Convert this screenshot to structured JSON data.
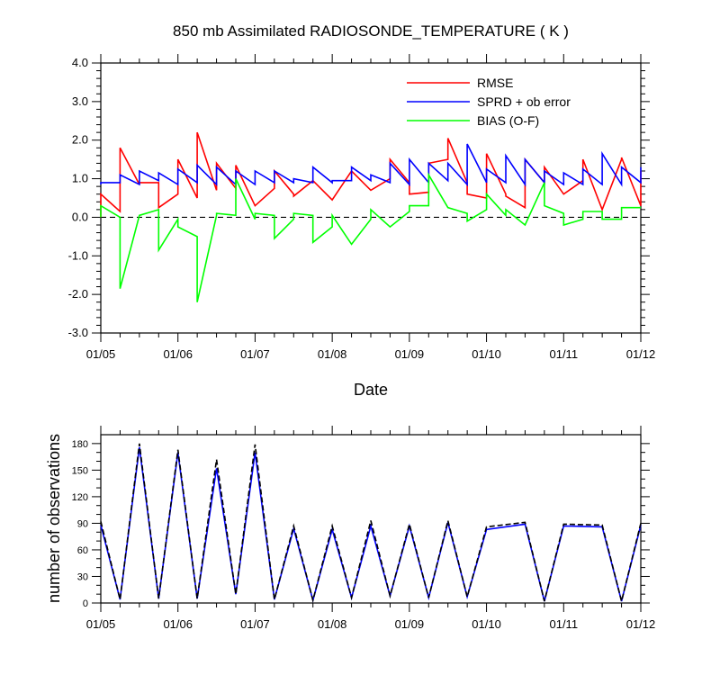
{
  "title": "850 mb Assimilated RADIOSONDE_TEMPERATURE ( K )",
  "colors": {
    "rmse": "#ff0000",
    "sprd": "#0000ff",
    "bias": "#00ff00",
    "axis": "#000000"
  },
  "chart_data": [
    {
      "type": "line",
      "title": "850 mb Assimilated RADIOSONDE_TEMPERATURE ( K )",
      "xlabel": "Date",
      "ylabel": "",
      "ylim": [
        -3,
        4
      ],
      "yticks": [
        "-3.0",
        "-2.0",
        "-1.0",
        "0.0",
        "1.0",
        "2.0",
        "3.0",
        "4.0"
      ],
      "xlim": [
        0,
        7
      ],
      "xticks": [
        "01/05",
        "01/06",
        "01/07",
        "01/08",
        "01/09",
        "01/10",
        "01/11",
        "01/12"
      ],
      "x": [
        0,
        0.25,
        0.5,
        0.75,
        1,
        1.25,
        1.5,
        1.75,
        2,
        2.25,
        2.5,
        2.75,
        3,
        3.25,
        3.5,
        3.75,
        4,
        4.25,
        4.5,
        4.75,
        5,
        5.25,
        5.5,
        5.75,
        6,
        6.25,
        6.5,
        6.75,
        7
      ],
      "legend": "top-right",
      "zero_line": "dashed",
      "series": [
        {
          "name": "RMSE",
          "color": "#ff0000",
          "values": [
            0.6,
            1.8,
            0.9,
            0.25,
            1.5,
            2.2,
            1.4,
            1.35,
            0.3,
            1.2,
            0.55,
            0.95,
            0.45,
            1.2,
            0.7,
            1.5,
            0.6,
            1.4,
            2.05,
            0.6,
            1.65,
            0.55,
            1.5,
            1.3,
            0.6,
            1.5,
            0.2,
            1.55,
            1.2
          ],
          "drops": [
            0,
            0.15,
            0.85,
            0.9,
            0.6,
            0.5,
            0.7,
            0.75,
            0.3,
            0.75,
            0.6,
            0.95,
            0.45,
            1.2,
            0.7,
            1.0,
            0.9,
            0.65,
            1.5,
            0.9,
            0.5,
            0.6,
            0.25,
            0.9,
            0.6,
            0.95,
            0.2,
            1.5,
            0.3
          ]
        },
        {
          "name": "SPRD + ob error",
          "color": "#0000ff",
          "values": [
            0.9,
            1.1,
            1.2,
            1.15,
            1.25,
            1.35,
            1.3,
            1.2,
            1.2,
            1.2,
            1.0,
            1.3,
            0.95,
            1.3,
            1.1,
            1.4,
            1.5,
            1.4,
            1.4,
            1.9,
            1.25,
            1.6,
            1.5,
            1.2,
            1.15,
            1.25,
            1.65,
            1.3,
            1.3
          ],
          "drops": [
            0.85,
            0.9,
            0.85,
            0.95,
            0.85,
            0.9,
            0.85,
            0.85,
            0.85,
            0.9,
            0.9,
            0.9,
            0.9,
            0.95,
            0.95,
            0.9,
            0.85,
            0.9,
            0.95,
            0.85,
            0.9,
            0.9,
            0.85,
            0.9,
            0.85,
            0.85,
            0.85,
            0.85,
            0.9
          ]
        },
        {
          "name": "BIAS (O-F)",
          "color": "#00ff00",
          "values": [
            0.3,
            -1.85,
            0.05,
            -0.85,
            -0.25,
            -2.2,
            0.1,
            1.0,
            0.1,
            -0.55,
            0.1,
            -0.65,
            0.05,
            -0.7,
            0.2,
            -0.25,
            0.3,
            1.1,
            0.25,
            -0.1,
            0.6,
            0.2,
            -0.2,
            0.3,
            -0.2,
            0.15,
            -0.05,
            0.25,
            0.25
          ],
          "drops": [
            0,
            0.0,
            0.05,
            0.2,
            -0.05,
            -0.5,
            0.05,
            0.05,
            -0.05,
            0.05,
            -0.05,
            0.05,
            -0.25,
            -0.7,
            -0.05,
            -0.25,
            0.15,
            0.3,
            0.25,
            0.1,
            0.2,
            0.05,
            -0.2,
            0.9,
            0.1,
            -0.05,
            0.15,
            -0.05,
            0.25
          ]
        }
      ]
    },
    {
      "type": "line",
      "ylabel": "number of observations",
      "ylim": [
        0,
        190
      ],
      "yticks": [
        "0",
        "30",
        "60",
        "90",
        "120",
        "150",
        "180"
      ],
      "xlim": [
        0,
        7
      ],
      "xticks": [
        "01/05",
        "01/06",
        "01/07",
        "01/08",
        "01/09",
        "01/10",
        "01/11",
        "01/12"
      ],
      "x": [
        0,
        0.25,
        0.5,
        0.75,
        1,
        1.25,
        1.5,
        1.75,
        2,
        2.25,
        2.5,
        2.75,
        3,
        3.25,
        3.5,
        3.75,
        4,
        4.25,
        4.5,
        4.75,
        5,
        5.5,
        5.75,
        6,
        6.5,
        6.75,
        7
      ],
      "series": [
        {
          "name": "",
          "color": "#0000ff",
          "style": "solid",
          "values": [
            88,
            4,
            176,
            5,
            170,
            5,
            152,
            10,
            170,
            4,
            84,
            3,
            83,
            6,
            87,
            8,
            87,
            6,
            91,
            7,
            83,
            89,
            2,
            87,
            86,
            2,
            88
          ]
        },
        {
          "name": "",
          "color": "#000000",
          "style": "dashed",
          "values": [
            92,
            4,
            180,
            5,
            173,
            5,
            162,
            10,
            179,
            4,
            87,
            3,
            87,
            6,
            93,
            8,
            89,
            6,
            93,
            7,
            86,
            91,
            2,
            89,
            88,
            2,
            90
          ]
        }
      ]
    }
  ]
}
